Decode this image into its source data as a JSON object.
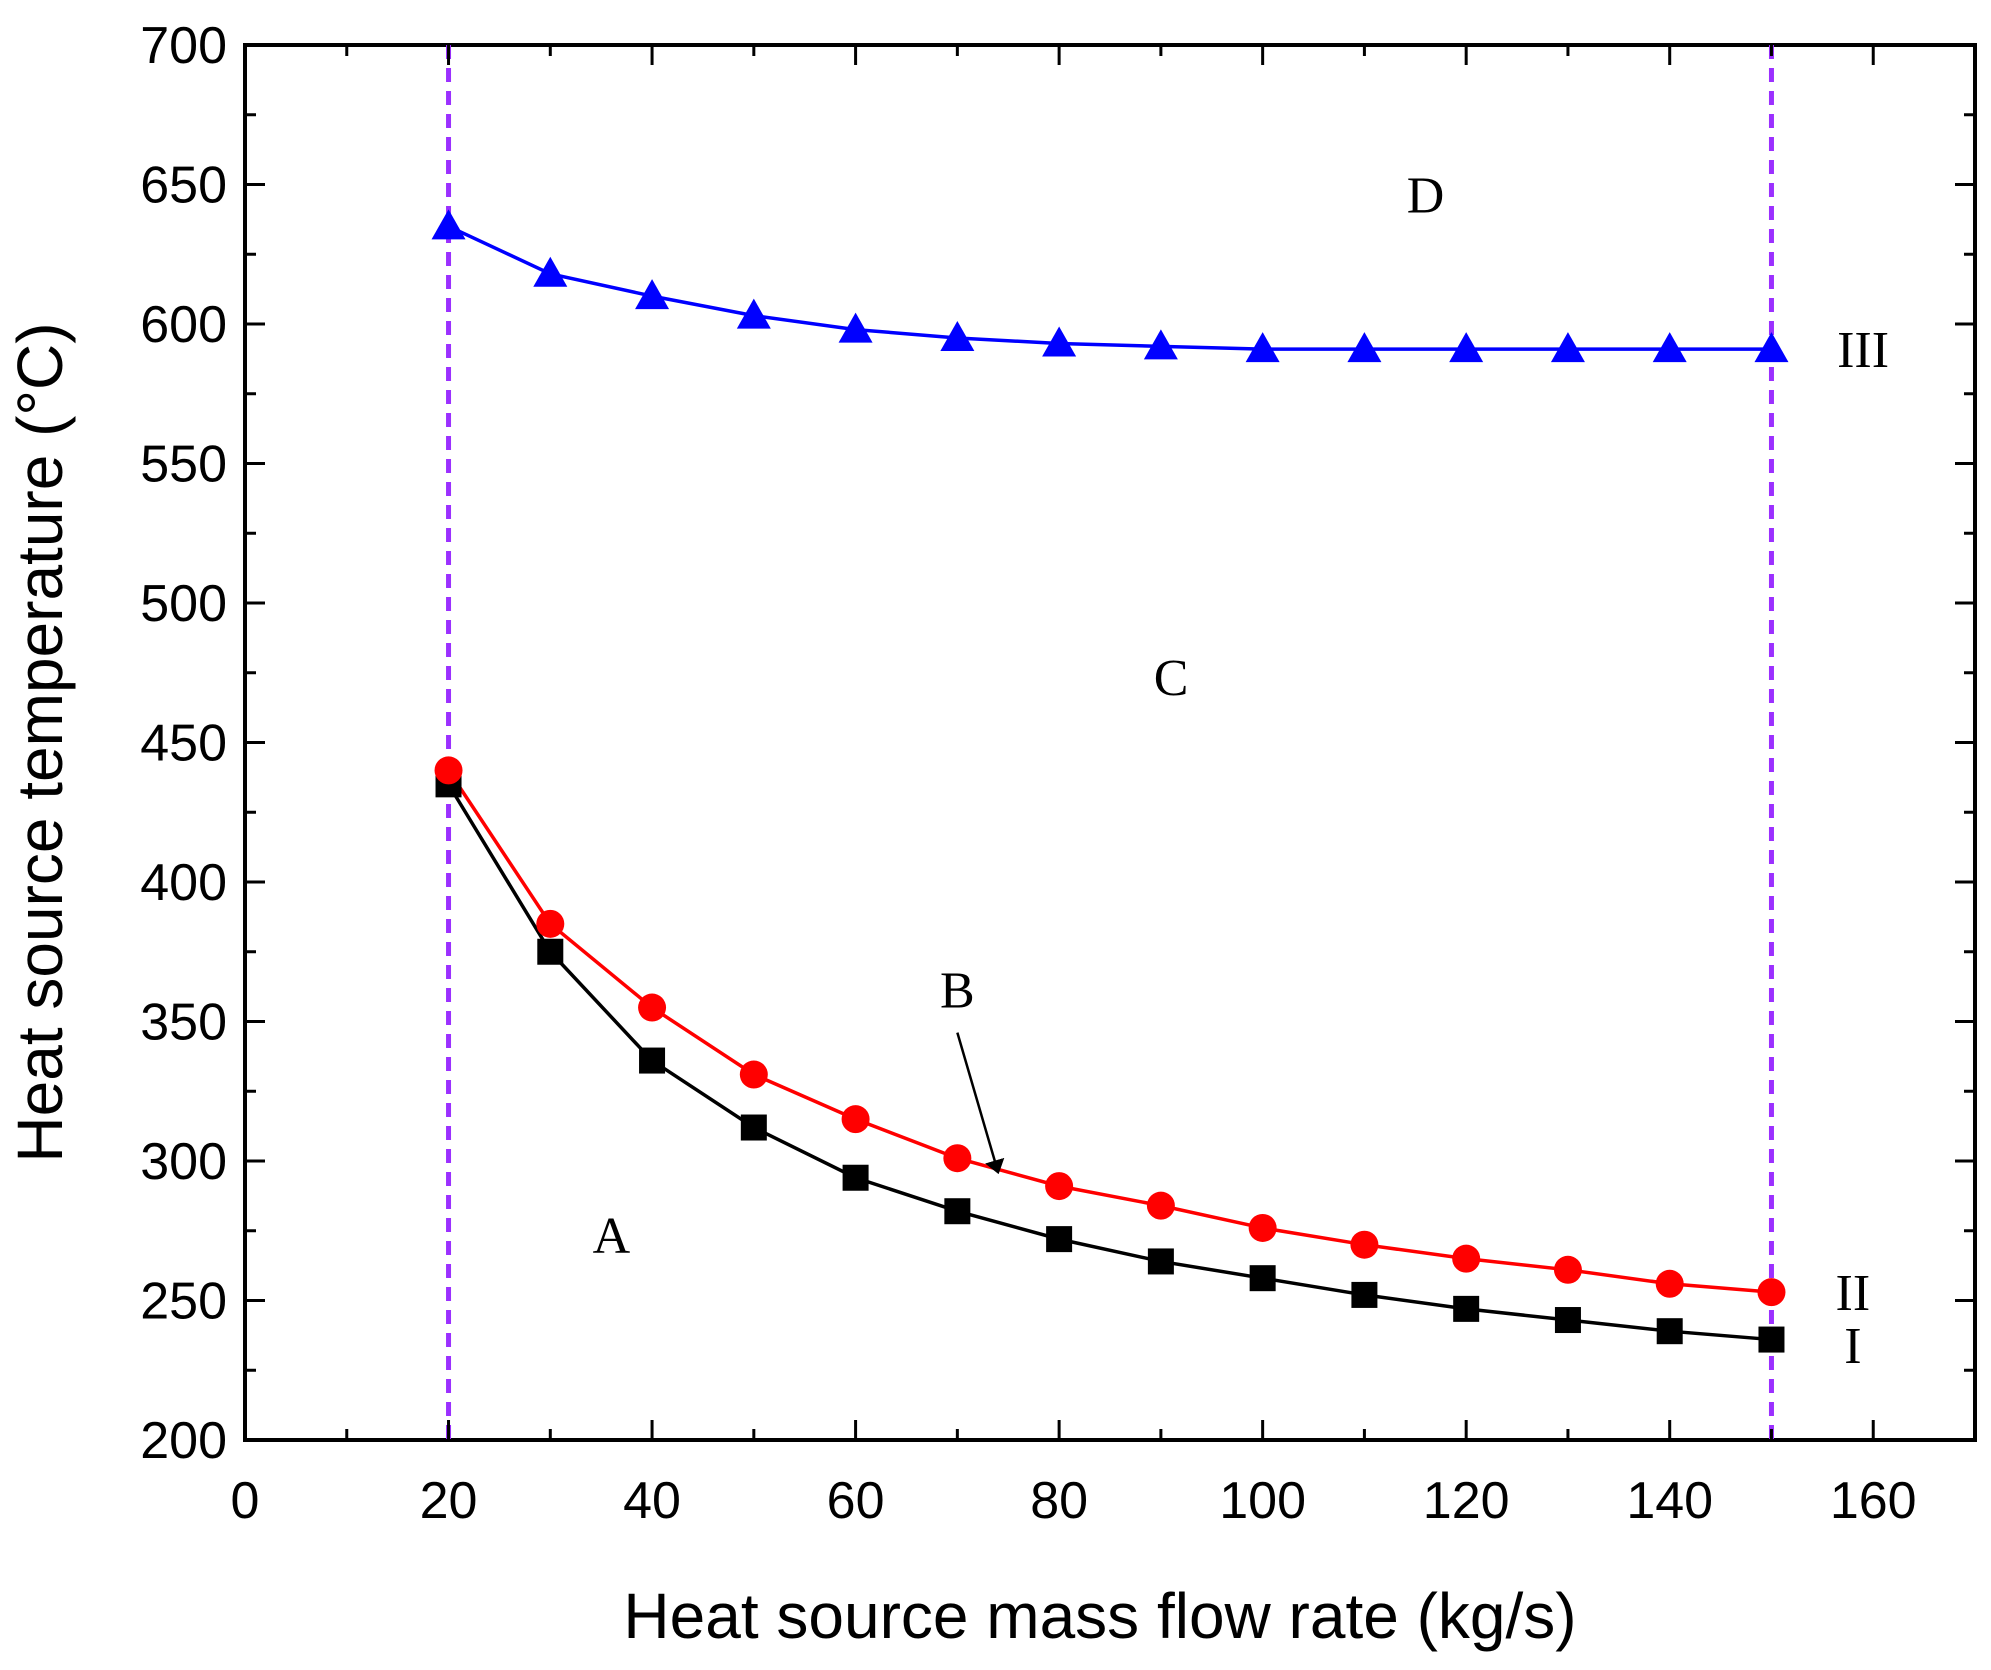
{
  "chart_data": {
    "type": "line",
    "title": "",
    "xlabel": "Heat source mass flow rate (kg/s)",
    "ylabel": "Heat source temperature (°C)",
    "xlim": [
      0,
      170
    ],
    "ylim": [
      200,
      700
    ],
    "x_ticks": [
      "0",
      "20",
      "40",
      "60",
      "80",
      "100",
      "120",
      "140",
      "160"
    ],
    "y_ticks": [
      "200",
      "250",
      "300",
      "350",
      "400",
      "450",
      "500",
      "550",
      "600",
      "650",
      "700"
    ],
    "x": [
      20,
      30,
      40,
      50,
      60,
      70,
      80,
      90,
      100,
      110,
      120,
      130,
      140,
      150
    ],
    "series": [
      {
        "name": "I",
        "color": "#000000",
        "marker": "square",
        "values": [
          435,
          375,
          336,
          312,
          294,
          282,
          272,
          264,
          258,
          252,
          247,
          243,
          239,
          236
        ]
      },
      {
        "name": "II",
        "color": "#ff0000",
        "marker": "circle",
        "values": [
          440,
          385,
          355,
          331,
          315,
          301,
          291,
          284,
          276,
          270,
          265,
          261,
          256,
          253
        ]
      },
      {
        "name": "III",
        "color": "#0000ff",
        "marker": "triangle",
        "values": [
          635,
          618,
          610,
          603,
          598,
          595,
          593,
          592,
          591,
          591,
          591,
          591,
          591,
          591
        ]
      }
    ],
    "vertical_lines": {
      "x": [
        20,
        150
      ],
      "color": "#9b30ff",
      "style": "dashed"
    },
    "region_labels": [
      {
        "text": "D",
        "x": 116,
        "y": 640
      },
      {
        "text": "C",
        "x": 91,
        "y": 467
      },
      {
        "text": "B",
        "x": 70,
        "y": 355
      },
      {
        "text": "A",
        "x": 36,
        "y": 267
      }
    ],
    "series_end_labels": [
      {
        "text": "III",
        "x": 159,
        "y": 591
      },
      {
        "text": "II",
        "x": 158,
        "y": 253
      },
      {
        "text": "I",
        "x": 158,
        "y": 234
      }
    ],
    "arrow": {
      "from": [
        70,
        346
      ],
      "to": [
        74,
        296
      ],
      "color": "#000000"
    }
  }
}
